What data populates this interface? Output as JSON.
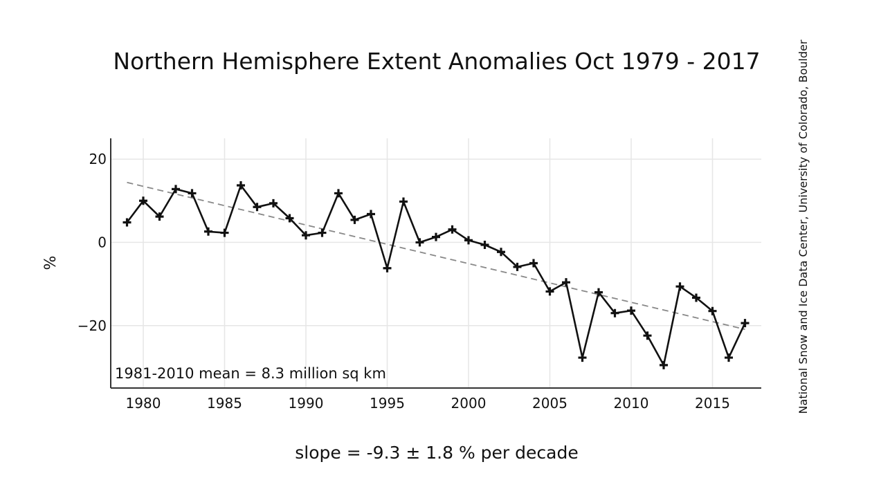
{
  "chart_data": {
    "type": "line",
    "title": "Northern Hemisphere Extent Anomalies Oct 1979 - 2017",
    "ylabel": "%",
    "xlabel": "",
    "xlim": [
      1978,
      2018
    ],
    "ylim": [
      -35,
      25
    ],
    "x_ticks": [
      1980,
      1985,
      1990,
      1995,
      2000,
      2005,
      2010,
      2015
    ],
    "y_ticks": [
      20,
      0,
      -20
    ],
    "y_tick_labels": [
      "20",
      "0",
      "−20"
    ],
    "grid": true,
    "series": [
      {
        "x": [
          1979,
          1980,
          1981,
          1982,
          1983,
          1984,
          1985,
          1986,
          1987,
          1988,
          1989,
          1990,
          1991,
          1992,
          1993,
          1994,
          1995,
          1996,
          1997,
          1998,
          1999,
          2000,
          2001,
          2002,
          2003,
          2004,
          2005,
          2006,
          2007,
          2008,
          2009,
          2010,
          2011,
          2012,
          2013,
          2014,
          2015,
          2016,
          2017
        ],
        "values": [
          4.8,
          10.0,
          6.2,
          12.8,
          11.8,
          2.6,
          2.3,
          13.7,
          8.5,
          9.4,
          5.8,
          1.7,
          2.3,
          11.8,
          5.4,
          6.8,
          -6.2,
          9.8,
          0.0,
          1.3,
          3.1,
          0.5,
          -0.6,
          -2.3,
          -5.9,
          -5.0,
          -11.8,
          -9.6,
          -27.7,
          -12.0,
          -17.0,
          -16.4,
          -22.4,
          -29.5,
          -10.6,
          -13.3,
          -16.5,
          -27.7,
          -19.4
        ]
      }
    ],
    "trend": {
      "x": [
        1979,
        2017
      ],
      "values": [
        14.4,
        -20.9
      ]
    },
    "annotation": "1981-2010 mean = 8.3 million sq km",
    "slope_text": "slope = -9.3 ± 1.8 % per decade",
    "credit": "National Snow and Ice Data Center, University of Colorado, Boulder"
  }
}
